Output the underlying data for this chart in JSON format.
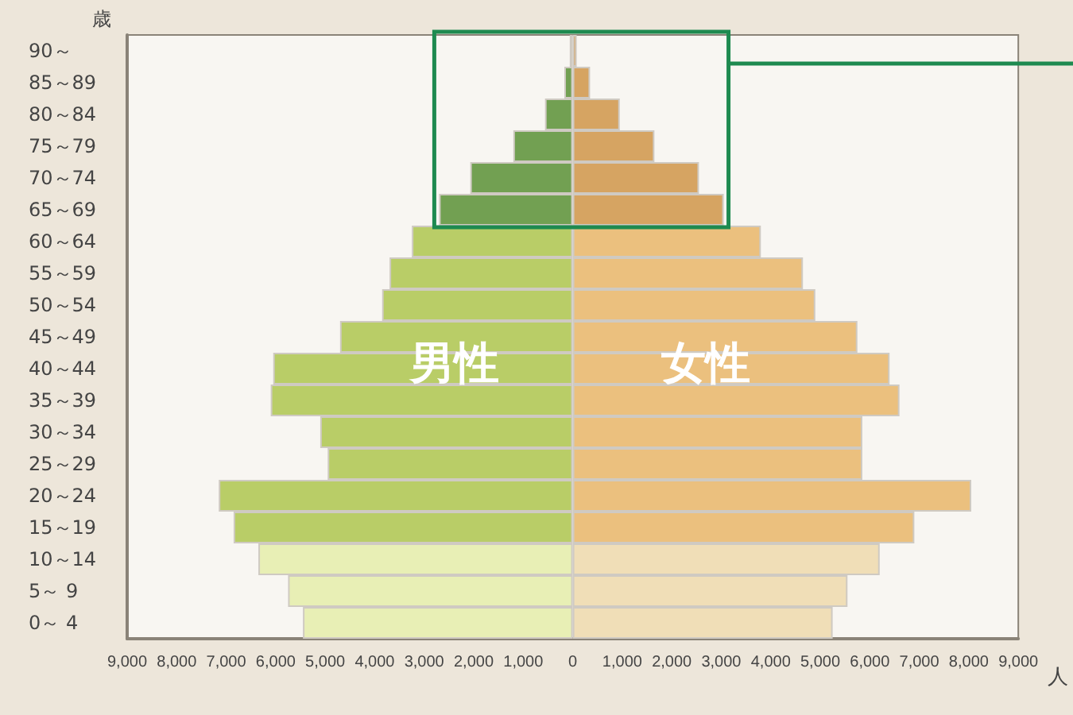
{
  "chart_data": {
    "type": "bar",
    "orientation": "horizontal",
    "ylabel": "歳",
    "xlabel": "人",
    "categories": [
      "90～",
      "85～89",
      "80～84",
      "75～79",
      "70～74",
      "65～69",
      "60～64",
      "55～59",
      "50～54",
      "45～49",
      "40～44",
      "35～39",
      "30～34",
      "25～29",
      "20～24",
      "15～19",
      "10～14",
      "5～ 9",
      "0～ 4"
    ],
    "series": [
      {
        "name": "男性",
        "values": [
          -60,
          -170,
          -560,
          -1200,
          -2070,
          -2700,
          -3250,
          -3700,
          -3850,
          -4700,
          -6050,
          -6100,
          -5100,
          -4950,
          -7150,
          -6850,
          -6350,
          -5750,
          -5450
        ],
        "colors": [
          "#72a052",
          "#72a052",
          "#72a052",
          "#72a052",
          "#72a052",
          "#72a052",
          "#b9cd67",
          "#b9cd67",
          "#b9cd67",
          "#b9cd67",
          "#b9cd67",
          "#b9cd67",
          "#b9cd67",
          "#b9cd67",
          "#b9cd67",
          "#b9cd67",
          "#e8efb5",
          "#e8efb5",
          "#e8efb5"
        ]
      },
      {
        "name": "女性",
        "values": [
          80,
          350,
          950,
          1650,
          2550,
          3050,
          3800,
          4650,
          4900,
          5750,
          6400,
          6600,
          5850,
          5850,
          8050,
          6900,
          6200,
          5550,
          5250
        ],
        "colors": [
          "#d6a462",
          "#d6a462",
          "#d6a462",
          "#d6a462",
          "#d6a462",
          "#d6a462",
          "#ebc07e",
          "#ebc07e",
          "#ebc07e",
          "#ebc07e",
          "#ebc07e",
          "#ebc07e",
          "#ebc07e",
          "#ebc07e",
          "#ebc07e",
          "#ebc07e",
          "#f0deb7",
          "#f0deb7",
          "#f0deb7"
        ]
      }
    ],
    "xlim": [
      -9000,
      9000
    ],
    "xticks": [
      {
        "value": -9000,
        "label": "9,000"
      },
      {
        "value": -8000,
        "label": "8,000"
      },
      {
        "value": -7000,
        "label": "7,000"
      },
      {
        "value": -6000,
        "label": "6,000"
      },
      {
        "value": -5000,
        "label": "5,000"
      },
      {
        "value": -4000,
        "label": "4,000"
      },
      {
        "value": -3000,
        "label": "3,000"
      },
      {
        "value": -2000,
        "label": "2,000"
      },
      {
        "value": -1000,
        "label": "1,000"
      },
      {
        "value": 0,
        "label": "0"
      },
      {
        "value": 1000,
        "label": "1,000"
      },
      {
        "value": 2000,
        "label": "2,000"
      },
      {
        "value": 3000,
        "label": "3,000"
      },
      {
        "value": 4000,
        "label": "4,000"
      },
      {
        "value": 5000,
        "label": "5,000"
      },
      {
        "value": 6000,
        "label": "6,000"
      },
      {
        "value": 7000,
        "label": "7,000"
      },
      {
        "value": 8000,
        "label": "8,000"
      },
      {
        "value": 9000,
        "label": "9,000"
      }
    ],
    "stacked": true,
    "grid": false,
    "legend": false
  }
}
